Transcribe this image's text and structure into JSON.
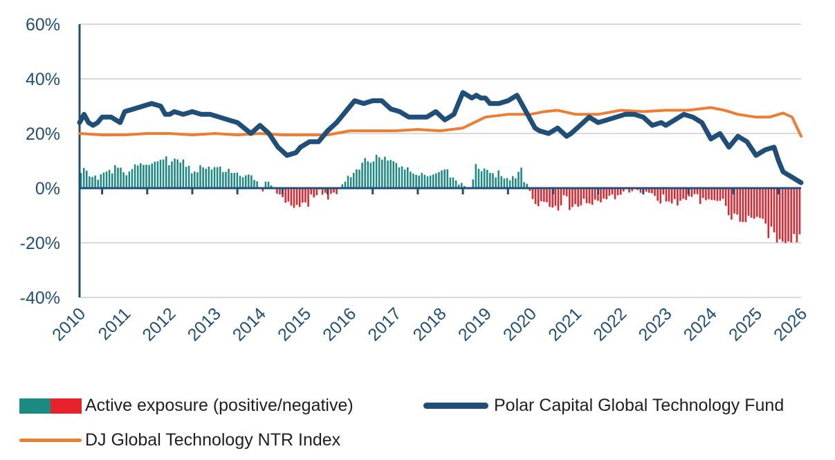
{
  "chart_data": {
    "type": "bar+line",
    "title": "",
    "ylim": [
      -40,
      60
    ],
    "yticks": [
      -40,
      -20,
      0,
      20,
      40,
      60
    ],
    "ytick_labels": [
      "-40%",
      "-20%",
      "0%",
      "20%",
      "40%",
      "60%"
    ],
    "xlim": [
      2010,
      2026
    ],
    "xtick_labels": [
      "2010",
      "2011",
      "2012",
      "2013",
      "2014",
      "2015",
      "2016",
      "2017",
      "2018",
      "2019",
      "2020",
      "2021",
      "2022",
      "2023",
      "2024",
      "2025",
      "2026"
    ],
    "grid": "horizontal",
    "legend_position": "bottom",
    "colors": {
      "fund": "#1f4e79",
      "index": "#ed7d31",
      "positive": "#1a8a83",
      "negative": "#e8222a",
      "grid": "#d9d9d9"
    },
    "series": [
      {
        "name": "Polar Capital Global Technology Fund",
        "kind": "line",
        "x": [
          2010.0,
          2010.1,
          2010.2,
          2010.3,
          2010.4,
          2010.5,
          2010.7,
          2010.9,
          2011.0,
          2011.2,
          2011.4,
          2011.6,
          2011.8,
          2011.9,
          2012.0,
          2012.1,
          2012.3,
          2012.5,
          2012.7,
          2012.9,
          2013.1,
          2013.3,
          2013.5,
          2013.8,
          2014.0,
          2014.2,
          2014.4,
          2014.6,
          2014.8,
          2014.9,
          2015.1,
          2015.3,
          2015.5,
          2015.7,
          2015.9,
          2016.1,
          2016.3,
          2016.5,
          2016.7,
          2016.9,
          2017.1,
          2017.3,
          2017.5,
          2017.7,
          2017.9,
          2018.1,
          2018.3,
          2018.5,
          2018.7,
          2018.8,
          2018.9,
          2019.0,
          2019.1,
          2019.3,
          2019.5,
          2019.7,
          2019.9,
          2020.0,
          2020.1,
          2020.2,
          2020.4,
          2020.6,
          2020.8,
          2020.9,
          2021.1,
          2021.3,
          2021.5,
          2021.7,
          2021.9,
          2022.1,
          2022.3,
          2022.5,
          2022.7,
          2022.9,
          2023.0,
          2023.2,
          2023.4,
          2023.6,
          2023.8,
          2024.0,
          2024.2,
          2024.4,
          2024.6,
          2024.8,
          2025.0,
          2025.2,
          2025.4,
          2025.5,
          2025.6,
          2025.7,
          2025.8,
          2026.0
        ],
        "values": [
          24,
          27,
          24,
          23,
          24,
          26,
          26,
          24,
          28,
          29,
          30,
          31,
          30,
          27,
          27,
          28,
          27,
          28,
          27,
          27,
          26,
          25,
          24,
          20,
          23,
          20,
          15,
          12,
          13,
          15,
          17,
          17,
          21,
          24,
          28,
          32,
          31,
          32,
          32,
          29,
          28,
          26,
          26,
          26,
          28,
          25,
          27,
          35,
          33,
          34,
          33,
          33,
          31,
          31,
          32,
          34,
          28,
          25,
          22,
          21,
          20,
          22,
          19,
          20,
          23,
          26,
          24,
          25,
          26,
          27,
          27,
          26,
          23,
          24,
          23,
          25,
          27,
          26,
          24,
          18,
          20,
          15,
          19,
          17,
          12,
          14,
          15,
          10,
          6,
          5,
          4,
          2
        ]
      },
      {
        "name": "DJ Global Technology NTR Index",
        "kind": "line",
        "x": [
          2010.0,
          2010.5,
          2011.0,
          2011.5,
          2012.0,
          2012.5,
          2013.0,
          2013.5,
          2014.0,
          2014.5,
          2015.0,
          2015.5,
          2016.0,
          2016.5,
          2017.0,
          2017.5,
          2018.0,
          2018.5,
          2019.0,
          2019.5,
          2020.0,
          2020.3,
          2020.6,
          2021.0,
          2021.5,
          2022.0,
          2022.5,
          2023.0,
          2023.5,
          2024.0,
          2024.3,
          2024.6,
          2025.0,
          2025.3,
          2025.6,
          2025.8,
          2026.0
        ],
        "values": [
          20,
          19.5,
          19.5,
          20,
          20,
          19.5,
          20,
          19.5,
          20,
          19.5,
          19.5,
          19.5,
          21,
          21,
          21,
          21.5,
          21,
          22,
          26,
          27,
          27,
          28,
          28.5,
          27,
          27,
          28.5,
          28,
          28.5,
          28.5,
          29.5,
          28.5,
          27,
          26,
          26,
          27.5,
          26,
          19
        ]
      },
      {
        "name": "Active exposure (positive/negative)",
        "kind": "bar",
        "values": [
          5.6,
          7.4,
          6.4,
          4.3,
          4.1,
          4.6,
          3.1,
          5.1,
          5.7,
          6.1,
          6.7,
          5.4,
          8.4,
          7.5,
          7.5,
          5.8,
          4.7,
          6.1,
          7.0,
          8.7,
          8.3,
          9.1,
          8.5,
          8.6,
          8.5,
          9.0,
          9.7,
          9.8,
          10.4,
          10.5,
          11.6,
          8.4,
          9.8,
          10.8,
          10.5,
          9.4,
          10.5,
          7.8,
          8.2,
          5.4,
          6.1,
          5.8,
          8.4,
          7.6,
          7.1,
          7.9,
          6.8,
          7.7,
          7.7,
          7.9,
          5.9,
          6.0,
          7.1,
          5.6,
          5.6,
          5.7,
          4.5,
          4.0,
          4.7,
          5.0,
          4.7,
          3.0,
          2.5,
          0.0,
          -1.2,
          2.4,
          2.4,
          1.0,
          0.0,
          -2.0,
          -2.3,
          -3.3,
          -5.3,
          -4.9,
          -6.4,
          -7.2,
          -6.1,
          -6.9,
          -5.3,
          -5.2,
          -6.8,
          -2.3,
          -3.4,
          -2.6,
          -0.5,
          -2.4,
          -1.7,
          -4.2,
          -2.1,
          -1.6,
          -2.2,
          0.0,
          1.4,
          2.4,
          4.5,
          4.0,
          5.6,
          6.9,
          6.8,
          9.3,
          11.0,
          9.8,
          9.3,
          9.8,
          12.2,
          11.3,
          10.4,
          11.5,
          10.1,
          10.3,
          9.9,
          9.2,
          7.6,
          8.0,
          6.8,
          7.6,
          6.0,
          5.3,
          4.9,
          4.6,
          5.6,
          4.9,
          4.3,
          4.6,
          5.0,
          5.4,
          5.9,
          6.5,
          6.8,
          6.9,
          3.9,
          3.9,
          2.8,
          1.3,
          1.9,
          0.8,
          0.0,
          0.0,
          3.2,
          8.8,
          7.1,
          6.2,
          7.2,
          6.7,
          5.6,
          5.5,
          3.9,
          6.5,
          4.4,
          3.5,
          3.7,
          2.9,
          4.4,
          3.6,
          6.0,
          7.5,
          2.2,
          1.6,
          -1.0,
          -4.0,
          -5.8,
          -6.6,
          -4.8,
          -5.0,
          -5.2,
          -6.8,
          -7.1,
          -6.5,
          -8.2,
          -6.3,
          -2.6,
          -3.0,
          -8.0,
          -6.9,
          -5.9,
          -6.8,
          -6.3,
          -3.9,
          -5.5,
          -5.6,
          -6.1,
          -4.2,
          -4.6,
          -5.2,
          -3.8,
          -4.1,
          -2.8,
          -2.3,
          -4.1,
          -2.6,
          -2.4,
          -1.2,
          0.0,
          -1.6,
          -1.1,
          -0.4,
          -0.7,
          -1.7,
          -1.0,
          -1.3,
          -1.7,
          -1.9,
          -2.8,
          -4.6,
          -5.6,
          -2.3,
          -4.9,
          -4.9,
          -5.6,
          -4.0,
          -6.3,
          -4.6,
          -3.9,
          -4.3,
          -3.0,
          -3.2,
          -2.2,
          -2.2,
          -5.8,
          -3.6,
          -4.4,
          -4.1,
          -4.3,
          -4.4,
          -4.7,
          -4.6,
          -3.9,
          -6.5,
          -9.9,
          -11.5,
          -9.3,
          -9.7,
          -12.3,
          -12.4,
          -12.4,
          -10.1,
          -10.8,
          -11.2,
          -10.5,
          -10.9,
          -11.2,
          -13.0,
          -18.3,
          -14.1,
          -16.2,
          -19.9,
          -18.7,
          -19.6,
          -20.1,
          -19.5,
          -19.9,
          -16.8,
          -19.8,
          -16.9
        ]
      }
    ]
  },
  "legend": {
    "items": [
      {
        "key": "active",
        "label": "Active exposure (positive/negative)"
      },
      {
        "key": "fund",
        "label": "Polar Capital Global Technology Fund"
      },
      {
        "key": "index",
        "label": "DJ Global Technology NTR Index"
      }
    ]
  }
}
